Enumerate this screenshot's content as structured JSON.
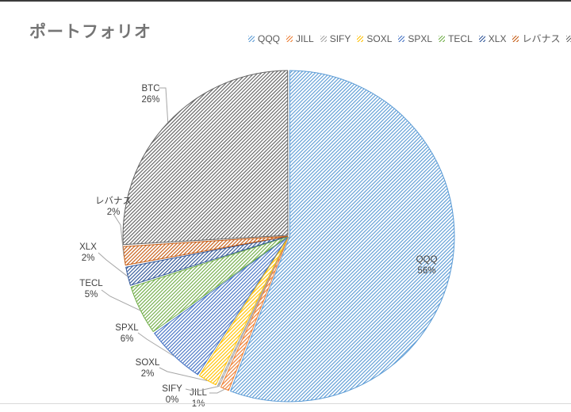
{
  "title": "ポートフォリオ",
  "chart_data": {
    "type": "pie",
    "title": "ポートフォリオ",
    "categories": [
      "QQQ",
      "JILL",
      "SIFY",
      "SOXL",
      "SPXL",
      "TECL",
      "XLX",
      "レバナス",
      "BTC"
    ],
    "values": [
      56,
      1,
      0,
      2,
      6,
      5,
      2,
      2,
      26
    ],
    "percent_labels": [
      "56%",
      "1%",
      "0%",
      "2%",
      "6%",
      "5%",
      "2%",
      "2%",
      "26%"
    ],
    "colors": [
      "#5B9BD5",
      "#ED7D31",
      "#A5A5A5",
      "#FFC000",
      "#4472C4",
      "#70AD47",
      "#2F5597",
      "#C55A11",
      "#636363"
    ],
    "fill_style": "diagonal-hatch-pattern",
    "legend_position": "top-right",
    "direction": "clockwise",
    "start_angle_deg": 0,
    "label_style": "category-and-percent-outside-with-leader-lines",
    "label_text_color": "#404040",
    "leader_line_color": "#A6A6A6",
    "title_color": "#757575",
    "legend_text_color": "#595959"
  }
}
